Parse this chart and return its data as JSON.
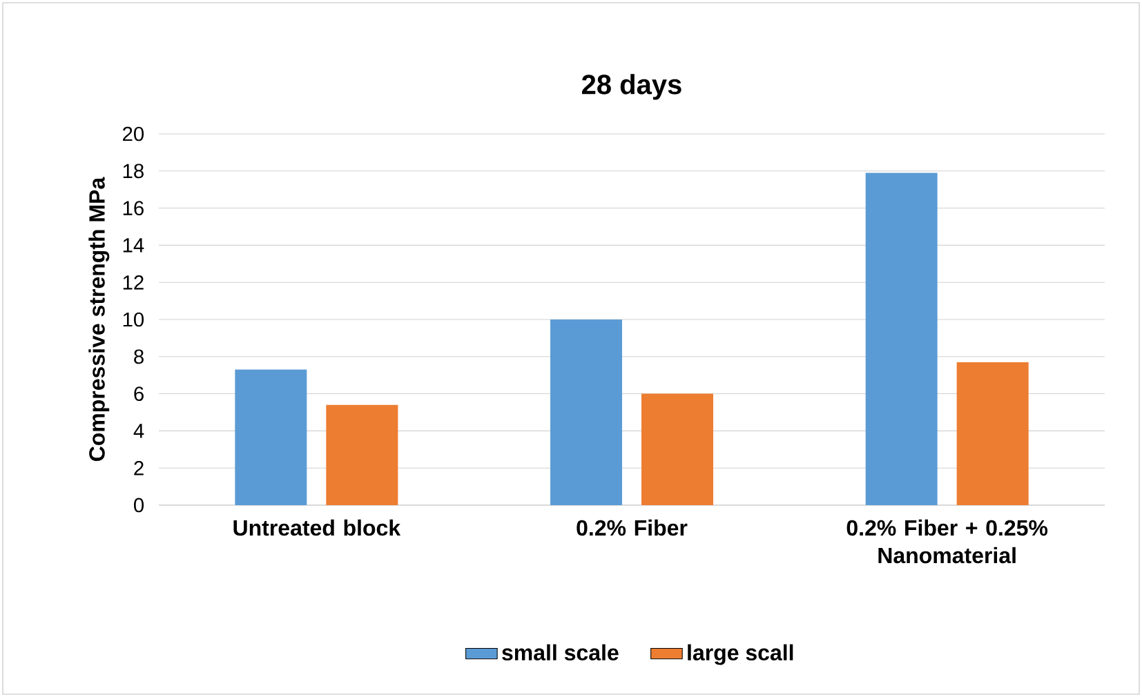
{
  "chart_data": {
    "type": "bar",
    "title": "28 days",
    "ylabel": "Compressive strength MPa",
    "categories": [
      "Untreated block",
      "0.2% Fiber",
      "0.2% Fiber + 0.25% Nanomaterial"
    ],
    "series": [
      {
        "name": "small scale",
        "color": "#5b9bd5",
        "values": [
          7.3,
          10.0,
          17.9
        ]
      },
      {
        "name": "large scall",
        "color": "#ed7d31",
        "values": [
          5.4,
          6.0,
          7.7
        ]
      }
    ],
    "ylim": [
      0,
      20
    ],
    "yticks": [
      0,
      2,
      4,
      6,
      8,
      10,
      12,
      14,
      16,
      18,
      20
    ],
    "grid": "y",
    "legend": "bottom"
  }
}
